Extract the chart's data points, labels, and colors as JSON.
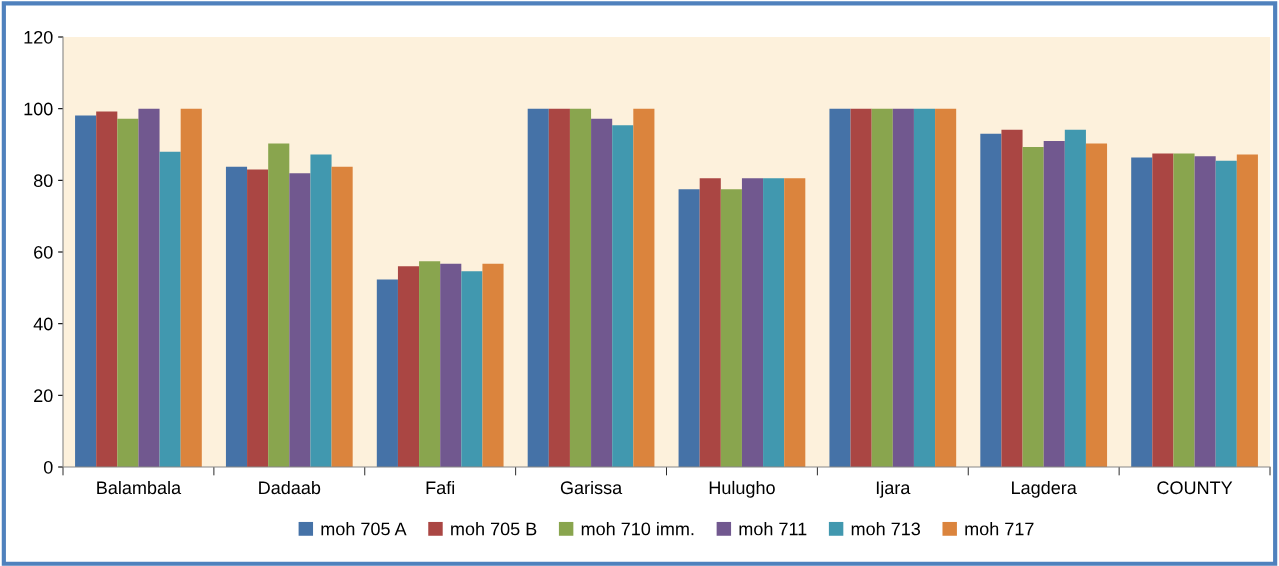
{
  "chart_data": {
    "type": "bar",
    "categories": [
      "Balambala",
      "Dadaab",
      "Fafi",
      "Garissa",
      "Hulugho",
      "Ijara",
      "Lagdera",
      "COUNTY"
    ],
    "series": [
      {
        "name": "moh 705 A",
        "color": "#4572a7",
        "values": [
          98.1,
          83.8,
          52.3,
          100,
          77.5,
          100,
          93.0,
          86.4
        ]
      },
      {
        "name": "moh 705 B",
        "color": "#aa4643",
        "values": [
          99.2,
          83.0,
          56.0,
          100,
          80.6,
          100,
          94.1,
          87.5
        ]
      },
      {
        "name": "moh 710 imm.",
        "color": "#89a54e",
        "values": [
          97.2,
          90.3,
          57.4,
          100,
          77.5,
          100,
          89.3,
          87.5
        ]
      },
      {
        "name": "moh 711",
        "color": "#71588f",
        "values": [
          100,
          82.0,
          56.7,
          97.2,
          80.6,
          100,
          91.0,
          86.7
        ]
      },
      {
        "name": "moh 713",
        "color": "#4198af",
        "values": [
          88.0,
          87.2,
          54.6,
          95.4,
          80.6,
          100,
          94.1,
          85.5
        ]
      },
      {
        "name": "moh 717",
        "color": "#db843d",
        "values": [
          100,
          83.8,
          56.7,
          100,
          80.6,
          100,
          90.3,
          87.2
        ]
      }
    ],
    "ylim": [
      0,
      120
    ],
    "yticks": [
      0,
      20,
      40,
      60,
      80,
      100,
      120
    ],
    "grid": false,
    "legend": "bottom"
  }
}
